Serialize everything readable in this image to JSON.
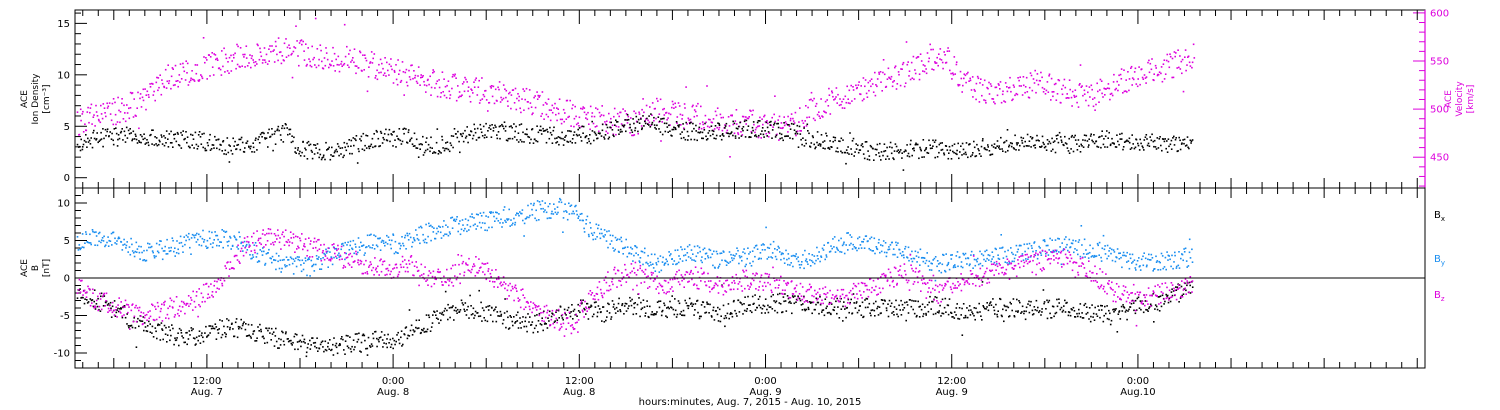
{
  "xaxis": {
    "title": "hours:minutes, Aug.  7, 2015 - Aug. 10, 2015",
    "range_hours": [
      3.5,
      90.5
    ],
    "major_ticks": [
      {
        "hour": 12,
        "time": "12:00",
        "date": "Aug. 7"
      },
      {
        "hour": 24,
        "time": "0:00",
        "date": "Aug. 8"
      },
      {
        "hour": 36,
        "time": "12:00",
        "date": "Aug. 8"
      },
      {
        "hour": 48,
        "time": "0:00",
        "date": "Aug. 9"
      },
      {
        "hour": 60,
        "time": "12:00",
        "date": "Aug. 9"
      },
      {
        "hour": 72,
        "time": "0:00",
        "date": "Aug.10"
      }
    ],
    "minor_tick_step_hours": 1
  },
  "chart_data": [
    {
      "type": "scatter",
      "panel": "top",
      "left_axis": {
        "label": [
          "ACE",
          "Ion Density",
          "[cm⁻³]"
        ],
        "ylim": [
          -1,
          16.3
        ],
        "ticks": [
          0,
          5,
          10,
          15
        ]
      },
      "right_axis": {
        "label": [
          "ACE",
          "Velocity",
          "[km/s]"
        ],
        "ylim": [
          418,
          603
        ],
        "ticks": [
          450,
          500,
          550,
          600
        ],
        "color": "#dd00dd"
      },
      "series": [
        {
          "name": "Ion Density",
          "axis": "left",
          "color": "#000000",
          "scatter_amp": 0.9,
          "points": [
            [
              3.6,
              3.2
            ],
            [
              4.5,
              3.8
            ],
            [
              5.5,
              4.0
            ],
            [
              7,
              4.1
            ],
            [
              9,
              3.7
            ],
            [
              11,
              3.9
            ],
            [
              13,
              3.2
            ],
            [
              15,
              3.5
            ],
            [
              17,
              4.5
            ],
            [
              18,
              2.8
            ],
            [
              20,
              2.6
            ],
            [
              21.5,
              3.3
            ],
            [
              23,
              3.9
            ],
            [
              25,
              4.0
            ],
            [
              26,
              3.1
            ],
            [
              27.5,
              3.3
            ],
            [
              29,
              4.4
            ],
            [
              31,
              4.6
            ],
            [
              33,
              4.3
            ],
            [
              35,
              4.1
            ],
            [
              37,
              4.3
            ],
            [
              39,
              5.4
            ],
            [
              41,
              5.1
            ],
            [
              43,
              4.6
            ],
            [
              45,
              4.6
            ],
            [
              47,
              4.8
            ],
            [
              48.5,
              4.7
            ],
            [
              49.5,
              4.5
            ],
            [
              51,
              3.8
            ],
            [
              53,
              3.2
            ],
            [
              55,
              2.6
            ],
            [
              57,
              2.8
            ],
            [
              58.5,
              2.9
            ],
            [
              60,
              2.7
            ],
            [
              62,
              3.0
            ],
            [
              64,
              3.5
            ],
            [
              66,
              3.4
            ],
            [
              68,
              3.3
            ],
            [
              70,
              3.8
            ],
            [
              72,
              3.6
            ],
            [
              74,
              3.3
            ],
            [
              75.5,
              3.3
            ]
          ]
        },
        {
          "name": "Velocity",
          "axis": "right",
          "color": "#dd00dd",
          "scatter_amp": 14,
          "points": [
            [
              3.6,
              486
            ],
            [
              5,
              495
            ],
            [
              6.5,
              500
            ],
            [
              7.5,
              508
            ],
            [
              8.5,
              520
            ],
            [
              9.5,
              535
            ],
            [
              11,
              540
            ],
            [
              12.5,
              548
            ],
            [
              14,
              555
            ],
            [
              15.5,
              560
            ],
            [
              17.5,
              562
            ],
            [
              19,
              558
            ],
            [
              21,
              552
            ],
            [
              23,
              545
            ],
            [
              25,
              535
            ],
            [
              26.5,
              528
            ],
            [
              28.5,
              522
            ],
            [
              30.5,
              518
            ],
            [
              32,
              512
            ],
            [
              33.5,
              505
            ],
            [
              35,
              498
            ],
            [
              37,
              492
            ],
            [
              38,
              488
            ],
            [
              39.5,
              486
            ],
            [
              41,
              500
            ],
            [
              42.5,
              495
            ],
            [
              44,
              492
            ],
            [
              45.5,
              488
            ],
            [
              47,
              486
            ],
            [
              48.5,
              482
            ],
            [
              49.5,
              480
            ],
            [
              51,
              500
            ],
            [
              52.5,
              512
            ],
            [
              54,
              520
            ],
            [
              56,
              532
            ],
            [
              58,
              545
            ],
            [
              59.5,
              555
            ],
            [
              61,
              525
            ],
            [
              62.5,
              518
            ],
            [
              64,
              522
            ],
            [
              65.5,
              528
            ],
            [
              67,
              520
            ],
            [
              68.5,
              515
            ],
            [
              70,
              520
            ],
            [
              71,
              530
            ],
            [
              72,
              538
            ],
            [
              73,
              542
            ],
            [
              74.5,
              548
            ],
            [
              75.6,
              555
            ]
          ]
        }
      ]
    },
    {
      "type": "scatter",
      "panel": "bottom",
      "left_axis": {
        "label": [
          "ACE",
          "B",
          "[nT]"
        ],
        "ylim": [
          -12,
          12
        ],
        "ticks": [
          -10,
          -5,
          0,
          5,
          10
        ]
      },
      "zero_line": true,
      "series": [
        {
          "name": "Bx",
          "color": "#000000",
          "scatter_amp": 1.3,
          "points": [
            [
              3.6,
              -2
            ],
            [
              5,
              -3
            ],
            [
              6,
              -4
            ],
            [
              7.5,
              -6
            ],
            [
              9,
              -7
            ],
            [
              10.5,
              -8
            ],
            [
              12,
              -7
            ],
            [
              13.5,
              -6.5
            ],
            [
              15,
              -7
            ],
            [
              16.5,
              -8
            ],
            [
              18,
              -8.5
            ],
            [
              20,
              -9
            ],
            [
              22,
              -8.5
            ],
            [
              24,
              -8
            ],
            [
              25,
              -7.5
            ],
            [
              26,
              -6
            ],
            [
              27,
              -4.5
            ],
            [
              28.5,
              -4
            ],
            [
              30,
              -4.5
            ],
            [
              31.5,
              -5.5
            ],
            [
              33,
              -6
            ],
            [
              34.5,
              -5
            ],
            [
              36,
              -4
            ],
            [
              37.5,
              -4.5
            ],
            [
              39,
              -3.5
            ],
            [
              41,
              -4.2
            ],
            [
              43,
              -3.8
            ],
            [
              45,
              -4.5
            ],
            [
              47,
              -3.5
            ],
            [
              49,
              -3.2
            ],
            [
              51,
              -3.5
            ],
            [
              53,
              -4.0
            ],
            [
              55,
              -3.8
            ],
            [
              57,
              -4.0
            ],
            [
              59,
              -3.5
            ],
            [
              61,
              -4.5
            ],
            [
              63,
              -3.8
            ],
            [
              65,
              -4.2
            ],
            [
              67,
              -4.0
            ],
            [
              69,
              -4.5
            ],
            [
              70.5,
              -5
            ],
            [
              72,
              -3.5
            ],
            [
              73.5,
              -3
            ],
            [
              75.5,
              -1
            ]
          ]
        },
        {
          "name": "By",
          "color": "#1a8ef0",
          "scatter_amp": 1.3,
          "points": [
            [
              3.6,
              5
            ],
            [
              5,
              5.5
            ],
            [
              6.5,
              5
            ],
            [
              8,
              3.5
            ],
            [
              9.5,
              4
            ],
            [
              11,
              5
            ],
            [
              12.5,
              5.5
            ],
            [
              14,
              5
            ],
            [
              15.5,
              3
            ],
            [
              17,
              2
            ],
            [
              18.5,
              1.5
            ],
            [
              20,
              3
            ],
            [
              21.5,
              4
            ],
            [
              23,
              5
            ],
            [
              24.5,
              4.5
            ],
            [
              26,
              6
            ],
            [
              27.5,
              7
            ],
            [
              29.5,
              7.5
            ],
            [
              31.5,
              8
            ],
            [
              33,
              9
            ],
            [
              34.5,
              9.5
            ],
            [
              35.5,
              9
            ],
            [
              36.5,
              7
            ],
            [
              38,
              5
            ],
            [
              39.5,
              3.5
            ],
            [
              41,
              2
            ],
            [
              43,
              3.5
            ],
            [
              45,
              2.5
            ],
            [
              47,
              3
            ],
            [
              48.5,
              4
            ],
            [
              50,
              2
            ],
            [
              51.5,
              3.5
            ],
            [
              53,
              5
            ],
            [
              55,
              4.5
            ],
            [
              57,
              3.5
            ],
            [
              59,
              2
            ],
            [
              61,
              2.5
            ],
            [
              63,
              3
            ],
            [
              65,
              3.5
            ],
            [
              67,
              4.5
            ],
            [
              69,
              4
            ],
            [
              71,
              2.5
            ],
            [
              73,
              2
            ],
            [
              75.5,
              3
            ]
          ]
        },
        {
          "name": "Bz",
          "color": "#dd00dd",
          "scatter_amp": 1.4,
          "points": [
            [
              3.6,
              -1
            ],
            [
              5,
              -3
            ],
            [
              6.5,
              -4
            ],
            [
              8,
              -5
            ],
            [
              9.5,
              -4
            ],
            [
              11,
              -3
            ],
            [
              12.5,
              -1
            ],
            [
              13.5,
              2
            ],
            [
              14.5,
              4.5
            ],
            [
              16,
              5.5
            ],
            [
              17.5,
              5
            ],
            [
              19,
              4
            ],
            [
              20.5,
              3
            ],
            [
              22,
              2
            ],
            [
              23.5,
              1
            ],
            [
              25,
              2
            ],
            [
              26.5,
              0
            ],
            [
              28,
              0.5
            ],
            [
              29.5,
              2
            ],
            [
              31,
              -1
            ],
            [
              32.5,
              -3
            ],
            [
              34,
              -5
            ],
            [
              35.5,
              -6
            ],
            [
              36.5,
              -3
            ],
            [
              38,
              0
            ],
            [
              39.5,
              1
            ],
            [
              41,
              -1
            ],
            [
              43,
              0.5
            ],
            [
              45,
              -1
            ],
            [
              47,
              0
            ],
            [
              49,
              -1
            ],
            [
              51,
              -2
            ],
            [
              53,
              -2.5
            ],
            [
              55,
              -1
            ],
            [
              57,
              1
            ],
            [
              59,
              -2
            ],
            [
              61,
              0
            ],
            [
              63,
              1
            ],
            [
              65,
              2
            ],
            [
              67,
              3
            ],
            [
              69,
              1
            ],
            [
              70.5,
              -2
            ],
            [
              72,
              -3
            ],
            [
              73.5,
              -2
            ],
            [
              75.5,
              -1
            ]
          ]
        }
      ],
      "legend": [
        {
          "letter": "B",
          "sub": "x",
          "color": "#000000"
        },
        {
          "letter": "B",
          "sub": "y",
          "color": "#1a8ef0"
        },
        {
          "letter": "B",
          "sub": "z",
          "color": "#dd00dd"
        }
      ]
    }
  ]
}
